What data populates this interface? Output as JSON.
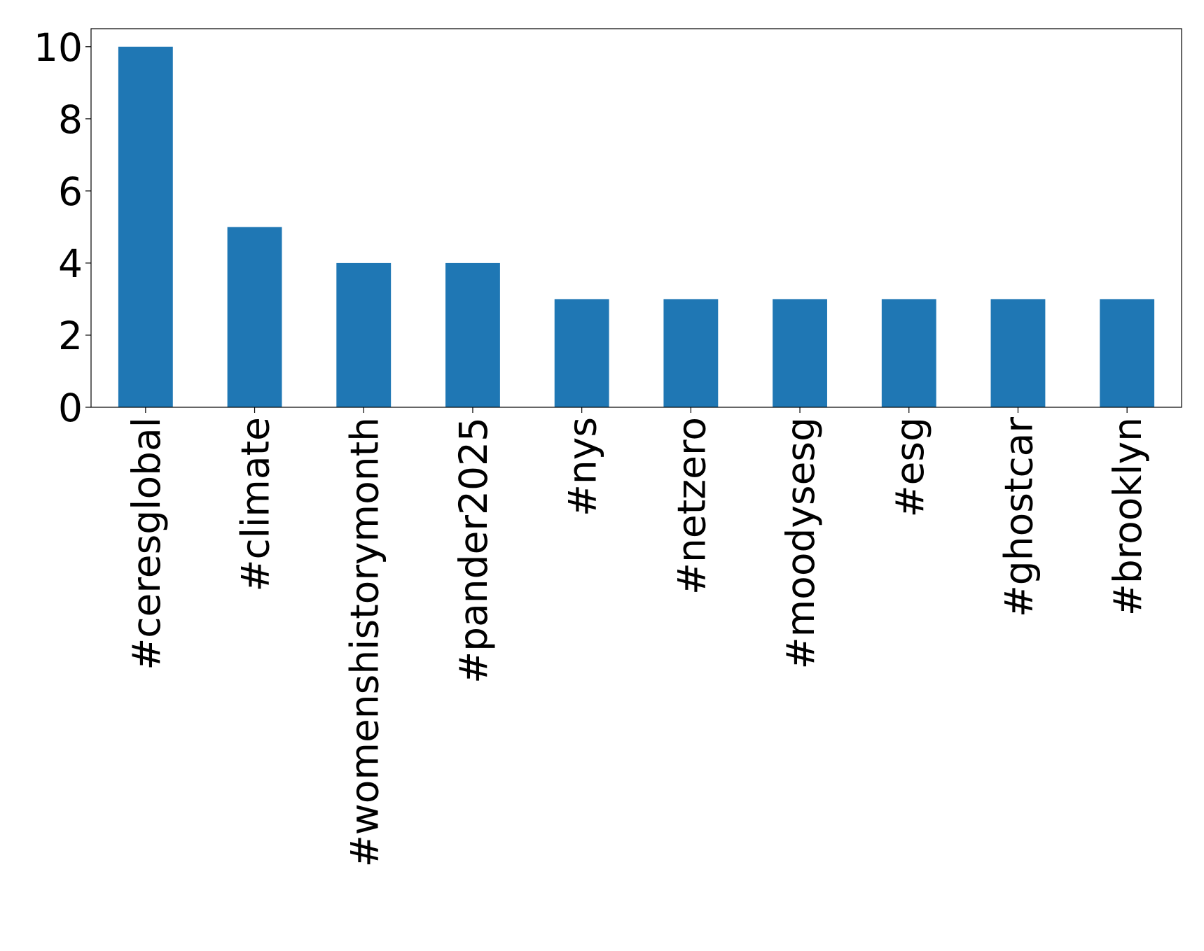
{
  "chart_data": {
    "type": "bar",
    "categories": [
      "#ceresglobal",
      "#climate",
      "#womenshistorymonth",
      "#pander2025",
      "#nys",
      "#netzero",
      "#moodysesg",
      "#esg",
      "#ghostcar",
      "#brooklyn"
    ],
    "values": [
      10,
      5,
      4,
      4,
      3,
      3,
      3,
      3,
      3,
      3
    ],
    "color": "#1f77b4",
    "ylim": [
      0,
      10.5
    ],
    "yticks": [
      0,
      2,
      4,
      6,
      8,
      10
    ],
    "grid": false
  }
}
